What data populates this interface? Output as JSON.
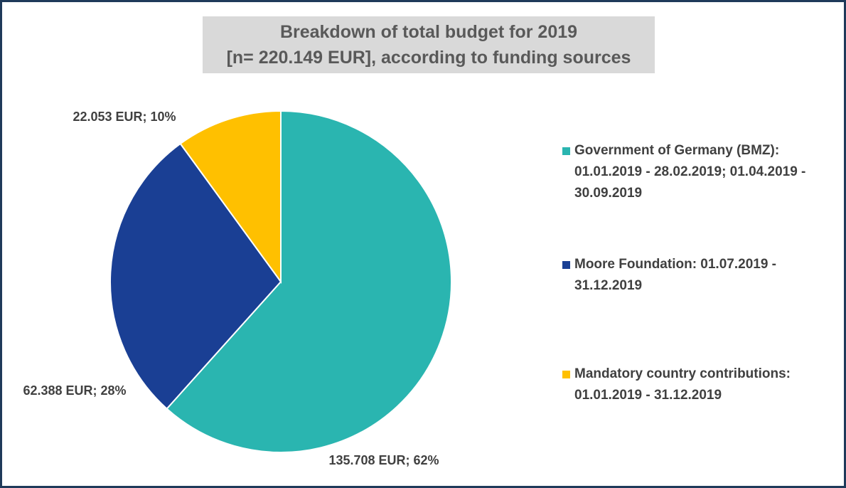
{
  "chart_data": {
    "type": "pie",
    "title": "Breakdown of total budget for 2019",
    "subtitle": "[n= 220.149 EUR], according to funding sources",
    "series": [
      {
        "name": "Government of Germany (BMZ): 01.01.2019 - 28.02.2019; 01.04.2019 - 30.09.2019",
        "color": "#2ab5b0",
        "values": [
          135708
        ],
        "value_labels": [
          "135.708 EUR; 62%"
        ]
      },
      {
        "name": "Moore Foundation: 01.07.2019 - 31.12.2019",
        "color": "#1a3f94",
        "values": [
          62388
        ],
        "value_labels": [
          "62.388 EUR; 28%"
        ]
      },
      {
        "name": "Mandatory country contributions: 01.01.2019 - 31.12.2019",
        "color": "#ffc000",
        "values": [
          22053
        ],
        "value_labels": [
          "22.053 EUR; 10%"
        ]
      }
    ],
    "legend": "right"
  }
}
